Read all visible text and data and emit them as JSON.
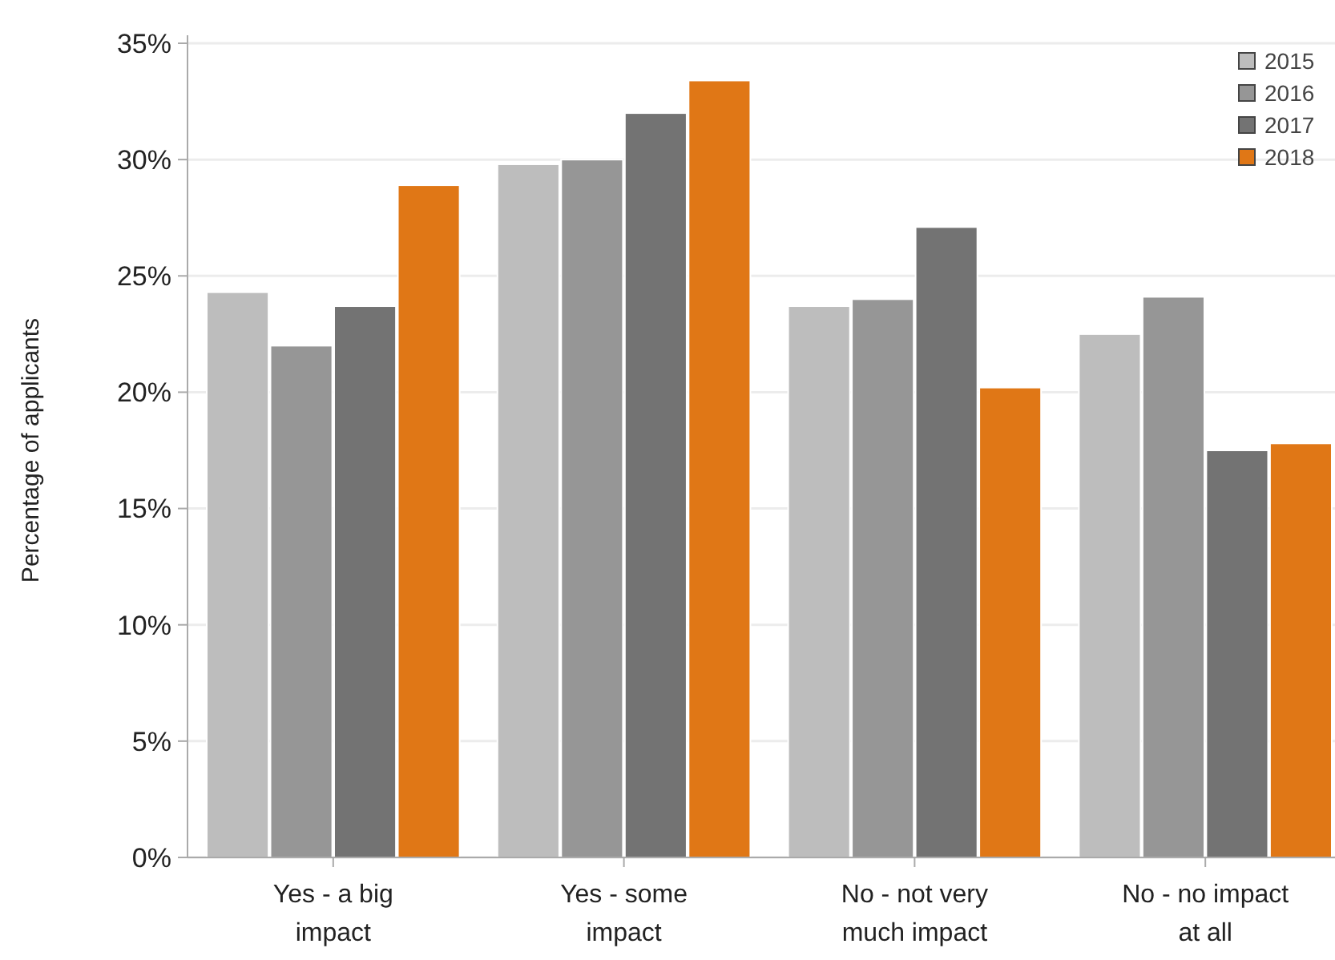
{
  "chart_data": {
    "type": "bar",
    "ylabel": "Percentage of applicants",
    "categories": [
      "Yes - a big impact",
      "Yes - some impact",
      "No - not very much impact",
      "No - no impact at all"
    ],
    "series": [
      {
        "name": "2015",
        "color": "#bdbdbd",
        "values": [
          24.3,
          29.8,
          23.7,
          22.5
        ]
      },
      {
        "name": "2016",
        "color": "#969696",
        "values": [
          22.0,
          30.0,
          24.0,
          24.1
        ]
      },
      {
        "name": "2017",
        "color": "#737373",
        "values": [
          23.7,
          32.0,
          27.1,
          17.5
        ]
      },
      {
        "name": "2018",
        "color": "#e07716",
        "values": [
          28.9,
          33.4,
          20.2,
          17.8
        ]
      }
    ],
    "ylim": [
      0,
      35
    ],
    "yticks": [
      {
        "value": 0,
        "label": "0%"
      },
      {
        "value": 5,
        "label": "5%"
      },
      {
        "value": 10,
        "label": "10%"
      },
      {
        "value": 15,
        "label": "15%"
      },
      {
        "value": 20,
        "label": "20%"
      },
      {
        "value": 25,
        "label": "25%"
      },
      {
        "value": 30,
        "label": "30%"
      },
      {
        "value": 35,
        "label": "35%"
      }
    ],
    "grid": "y",
    "legend": "top right"
  }
}
